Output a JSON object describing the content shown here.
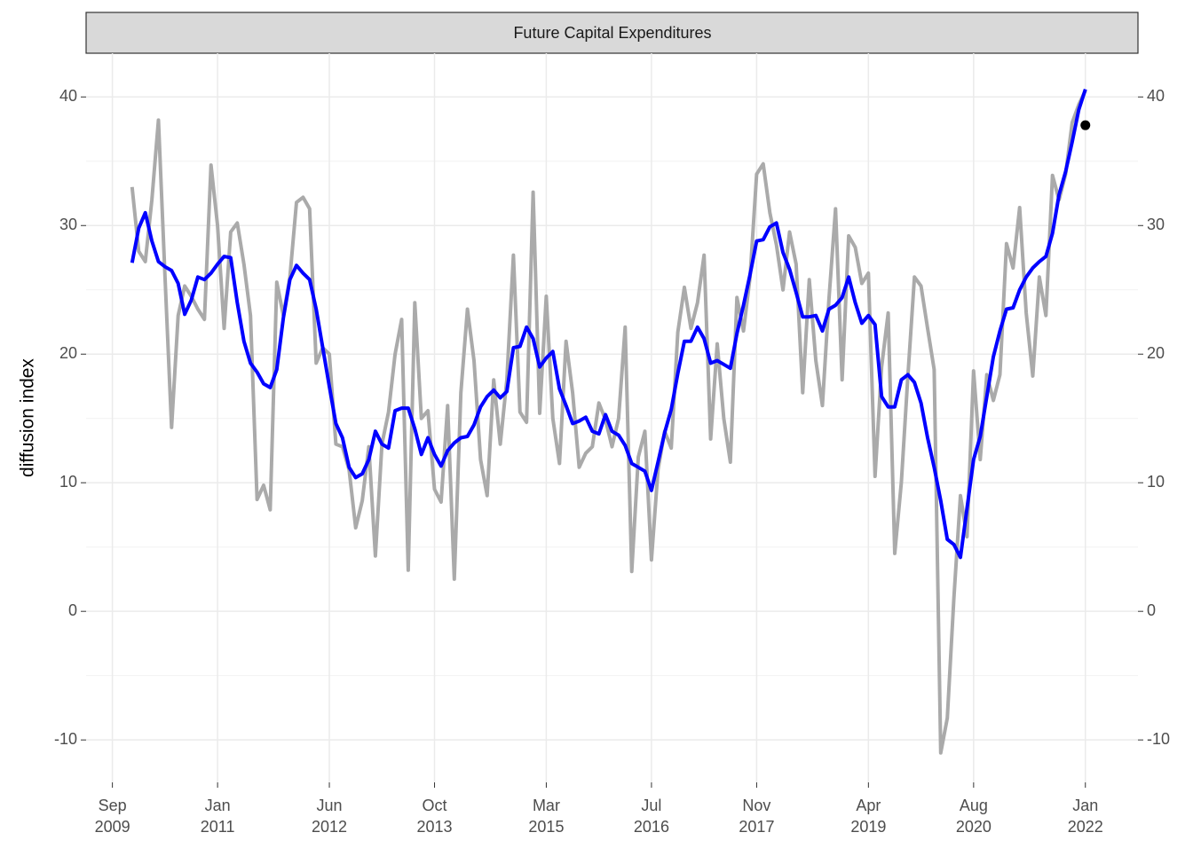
{
  "chart_data": {
    "type": "line",
    "title": "Future Capital Expenditures",
    "y_label": "diffusion index",
    "x": [
      "2009-12",
      "2010-01",
      "2010-02",
      "2010-03",
      "2010-04",
      "2010-05",
      "2010-06",
      "2010-07",
      "2010-08",
      "2010-09",
      "2010-10",
      "2010-11",
      "2010-12",
      "2011-01",
      "2011-02",
      "2011-03",
      "2011-04",
      "2011-05",
      "2011-06",
      "2011-07",
      "2011-08",
      "2011-09",
      "2011-10",
      "2011-11",
      "2011-12",
      "2012-01",
      "2012-02",
      "2012-03",
      "2012-04",
      "2012-05",
      "2012-06",
      "2012-07",
      "2012-08",
      "2012-09",
      "2012-10",
      "2012-11",
      "2012-12",
      "2013-01",
      "2013-02",
      "2013-03",
      "2013-04",
      "2013-05",
      "2013-06",
      "2013-07",
      "2013-08",
      "2013-09",
      "2013-10",
      "2013-11",
      "2013-12",
      "2014-01",
      "2014-02",
      "2014-03",
      "2014-04",
      "2014-05",
      "2014-06",
      "2014-07",
      "2014-08",
      "2014-09",
      "2014-10",
      "2014-11",
      "2014-12",
      "2015-01",
      "2015-02",
      "2015-03",
      "2015-04",
      "2015-05",
      "2015-06",
      "2015-07",
      "2015-08",
      "2015-09",
      "2015-10",
      "2015-11",
      "2015-12",
      "2016-01",
      "2016-02",
      "2016-03",
      "2016-04",
      "2016-05",
      "2016-06",
      "2016-07",
      "2016-08",
      "2016-09",
      "2016-10",
      "2016-11",
      "2016-12",
      "2017-01",
      "2017-02",
      "2017-03",
      "2017-04",
      "2017-05",
      "2017-06",
      "2017-07",
      "2017-08",
      "2017-09",
      "2017-10",
      "2017-11",
      "2017-12",
      "2018-01",
      "2018-02",
      "2018-03",
      "2018-04",
      "2018-05",
      "2018-06",
      "2018-07",
      "2018-08",
      "2018-09",
      "2018-10",
      "2018-11",
      "2018-12",
      "2019-01",
      "2019-02",
      "2019-03",
      "2019-04",
      "2019-05",
      "2019-06",
      "2019-07",
      "2019-08",
      "2019-09",
      "2019-10",
      "2019-11",
      "2019-12",
      "2020-01",
      "2020-02",
      "2020-03",
      "2020-04",
      "2020-05",
      "2020-06",
      "2020-07",
      "2020-08",
      "2020-09",
      "2020-10",
      "2020-11",
      "2020-12",
      "2021-01",
      "2021-02",
      "2021-03",
      "2021-04",
      "2021-05",
      "2021-06",
      "2021-07",
      "2021-08",
      "2021-09",
      "2021-10",
      "2021-11",
      "2021-12",
      "2022-01"
    ],
    "series": [
      {
        "color": "#aaaaaa",
        "values": [
          33,
          28,
          27.2,
          32,
          38.2,
          26,
          14.3,
          23,
          25.3,
          24.5,
          23.5,
          22.7,
          34.7,
          30,
          22,
          29.5,
          30.2,
          27,
          23,
          8.7,
          9.8,
          7.9,
          25.6,
          23,
          26,
          31.8,
          32.2,
          31.3,
          19.3,
          20.5,
          20,
          13,
          12.8,
          11,
          6.5,
          8.6,
          12.8,
          4.3,
          13,
          15.5,
          20,
          22.7,
          3.2,
          24,
          15,
          15.6,
          9.5,
          8.5,
          16,
          2.5,
          17,
          23.5,
          19.5,
          11.8,
          9,
          18,
          13,
          18,
          27.7,
          15.5,
          14.7,
          32.6,
          15.4,
          24.5,
          15,
          11.5,
          21,
          17,
          11.2,
          12.3,
          12.8,
          16.2,
          14.9,
          12.8,
          15,
          22.1,
          3.1,
          12,
          14,
          4,
          11,
          14,
          12.7,
          21.7,
          25.2,
          22,
          24,
          27.7,
          13.4,
          20.8,
          15,
          11.6,
          24.4,
          21.8,
          26,
          34,
          34.8,
          31,
          28.5,
          25,
          29.5,
          27,
          17,
          25.8,
          19.5,
          16,
          24.3,
          31.3,
          18,
          29.2,
          28.3,
          25.5,
          26.3,
          10.5,
          19,
          23.2,
          4.5,
          10,
          18.3,
          26,
          25.3,
          22,
          18.8,
          -11,
          -8.3,
          1,
          9,
          5.8,
          18.7,
          11.8,
          18.4,
          16.4,
          18.4,
          28.6,
          26.7,
          31.4,
          23.2,
          18.3,
          26,
          23,
          33.9,
          32,
          34,
          38,
          39.4,
          40.5
        ]
      },
      {
        "color": "#0000ff",
        "values": [
          27.1,
          29.8,
          31,
          28.8,
          27.2,
          26.8,
          26.5,
          25.5,
          23.1,
          24.2,
          26,
          25.8,
          26.3,
          27,
          27.6,
          27.5,
          24,
          21,
          19.3,
          18.6,
          17.7,
          17.4,
          18.8,
          22.8,
          25.8,
          26.9,
          26.3,
          25.8,
          23.5,
          20.5,
          17.5,
          14.6,
          13.5,
          11.2,
          10.4,
          10.7,
          11.8,
          14,
          13,
          12.7,
          15.6,
          15.8,
          15.8,
          14.2,
          12.2,
          13.5,
          12.2,
          11.3,
          12.5,
          13.1,
          13.5,
          13.6,
          14.5,
          15.9,
          16.7,
          17.2,
          16.6,
          17.1,
          20.5,
          20.6,
          22.1,
          21.2,
          19,
          19.7,
          20.2,
          17.3,
          16,
          14.6,
          14.8,
          15.1,
          14,
          13.8,
          15.3,
          14,
          13.7,
          12.9,
          11.5,
          11.2,
          10.9,
          9.4,
          11.6,
          13.9,
          15.7,
          18.5,
          21,
          21,
          22.1,
          21.2,
          19.3,
          19.5,
          19.2,
          18.9,
          21.6,
          23.8,
          26.2,
          28.8,
          28.9,
          29.9,
          30.2,
          27.9,
          26.6,
          24.8,
          22.9,
          22.9,
          23,
          21.8,
          23.5,
          23.8,
          24.4,
          26,
          24,
          22.4,
          23,
          22.3,
          16.7,
          15.9,
          15.9,
          18,
          18.4,
          17.8,
          16.2,
          13.5,
          11.2,
          8.6,
          5.6,
          5.2,
          4.2,
          8,
          11.8,
          13.6,
          16.7,
          19.8,
          21.8,
          23.5,
          23.6,
          25,
          26,
          26.7,
          27.2,
          27.6,
          29.4,
          32.4,
          34.2,
          36.5,
          39,
          40.6
        ]
      }
    ],
    "point": {
      "x": "2022-01",
      "value": 37.8,
      "color": "#000000"
    },
    "xlim": [
      "2009-05",
      "2022-09"
    ],
    "xticks": [
      {
        "value": "2009-09",
        "label": "Sep 2009"
      },
      {
        "value": "2011-01",
        "label": "Jan 2011"
      },
      {
        "value": "2012-06",
        "label": "Jun 2012"
      },
      {
        "value": "2013-10",
        "label": "Oct 2013"
      },
      {
        "value": "2015-03",
        "label": "Mar 2015"
      },
      {
        "value": "2016-07",
        "label": "Jul 2016"
      },
      {
        "value": "2017-11",
        "label": "Nov 2017"
      },
      {
        "value": "2019-04",
        "label": "Apr 2019"
      },
      {
        "value": "2020-08",
        "label": "Aug 2020"
      },
      {
        "value": "2022-01",
        "label": "Jan 2022"
      }
    ],
    "ylim": [
      -13.3,
      43.4
    ],
    "yticks": [
      -10,
      0,
      10,
      20,
      30,
      40
    ],
    "yminorticks": [
      -5,
      5,
      15,
      25,
      35
    ],
    "grid": true,
    "secondary_y_labels": true
  }
}
